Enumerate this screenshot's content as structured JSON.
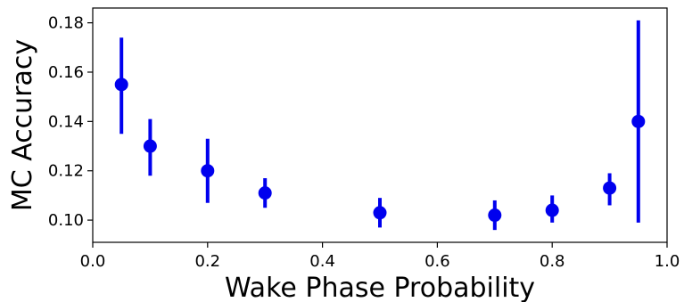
{
  "chart_data": {
    "type": "scatter",
    "xlabel": "Wake Phase Probability",
    "ylabel": "MC Accuracy",
    "xlim": [
      0.0,
      1.0
    ],
    "ylim": [
      0.091,
      0.186
    ],
    "x_ticks": [
      "0.0",
      "0.2",
      "0.4",
      "0.6",
      "0.8",
      "1.0"
    ],
    "x_tick_values": [
      0.0,
      0.2,
      0.4,
      0.6,
      0.8,
      1.0
    ],
    "y_ticks": [
      "0.10",
      "0.12",
      "0.14",
      "0.16",
      "0.18"
    ],
    "y_tick_values": [
      0.1,
      0.12,
      0.14,
      0.16,
      0.18
    ],
    "grid": false,
    "color": "#0000ee",
    "points": [
      {
        "x": 0.05,
        "y": 0.155,
        "low": 0.135,
        "high": 0.174
      },
      {
        "x": 0.1,
        "y": 0.13,
        "low": 0.118,
        "high": 0.141
      },
      {
        "x": 0.2,
        "y": 0.12,
        "low": 0.107,
        "high": 0.133
      },
      {
        "x": 0.3,
        "y": 0.111,
        "low": 0.105,
        "high": 0.117
      },
      {
        "x": 0.5,
        "y": 0.103,
        "low": 0.097,
        "high": 0.109
      },
      {
        "x": 0.7,
        "y": 0.102,
        "low": 0.096,
        "high": 0.108
      },
      {
        "x": 0.8,
        "y": 0.104,
        "low": 0.099,
        "high": 0.11
      },
      {
        "x": 0.9,
        "y": 0.113,
        "low": 0.106,
        "high": 0.119
      },
      {
        "x": 0.95,
        "y": 0.14,
        "low": 0.099,
        "high": 0.181
      }
    ]
  }
}
